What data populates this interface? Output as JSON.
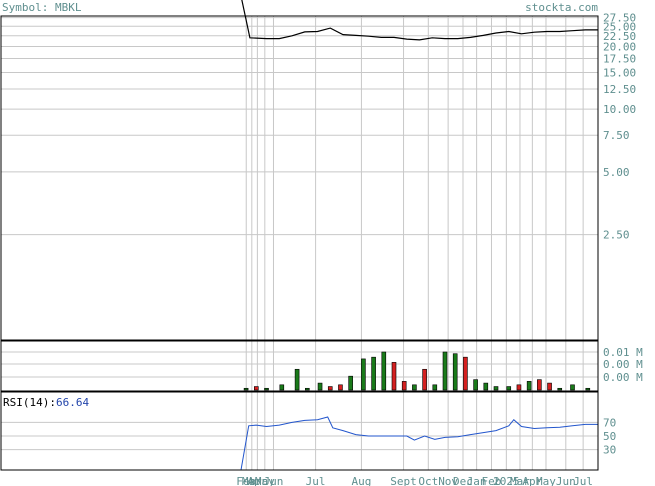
{
  "header": {
    "symbol_label": "Symbol: MBKL",
    "brand": "stockta.com"
  },
  "colors": {
    "background": "#ffffff",
    "frame": "#000000",
    "grid": "#c8c8c8",
    "axis_text": "#5f8f8f",
    "price_line": "#000000",
    "vol_up": "#1a7a1a",
    "vol_down": "#d42020",
    "rsi_line": "#2255cc",
    "rsi_value": "#2244aa"
  },
  "chart_data": [
    {
      "type": "line",
      "name": "price",
      "y_ticks": [
        "2.50",
        "5.00",
        "7.50",
        "10.00",
        "12.50",
        "15.00",
        "17.50",
        "20.00",
        "22.50",
        "25.00",
        "27.50"
      ],
      "ylim": [
        0,
        28
      ],
      "scale": "log",
      "x": [
        0.0,
        0.35,
        1.0,
        1.5,
        2.0,
        2.5,
        3.0,
        3.5,
        4.0,
        4.5,
        5.0,
        5.5,
        6.0,
        6.5,
        7.0,
        7.5,
        8.0,
        8.5,
        9.0,
        9.5,
        10.0,
        10.5,
        11.0,
        11.5,
        12.0,
        12.5,
        13.0,
        13.5,
        14.0
      ],
      "values": [
        600,
        22.0,
        21.8,
        21.8,
        22.5,
        23.5,
        23.6,
        24.5,
        22.8,
        22.6,
        22.4,
        22.1,
        22.1,
        21.7,
        21.5,
        22.0,
        21.8,
        21.8,
        22.1,
        22.6,
        23.2,
        23.6,
        23.0,
        23.4,
        23.6,
        23.6,
        23.8,
        24.0,
        24.0
      ]
    },
    {
      "type": "bar",
      "name": "volume",
      "y_ticks": [
        "0.01 M",
        "0.00 M",
        "0.00 M"
      ],
      "up_color": "#1a7a1a",
      "down_color": "#d42020",
      "x": [
        0.2,
        0.6,
        1.0,
        1.6,
        2.2,
        2.6,
        3.1,
        3.5,
        3.9,
        4.3,
        4.8,
        5.2,
        5.6,
        6.0,
        6.4,
        6.8,
        7.2,
        7.6,
        8.0,
        8.4,
        8.8,
        9.2,
        9.6,
        10.0,
        10.5,
        10.9,
        11.3,
        11.7,
        12.1,
        12.5,
        13.0,
        13.6
      ],
      "values": [
        0.001,
        0.002,
        0.001,
        0.003,
        0.012,
        0.001,
        0.004,
        0.002,
        0.003,
        0.008,
        0.018,
        0.019,
        0.022,
        0.016,
        0.005,
        0.003,
        0.012,
        0.003,
        0.022,
        0.021,
        0.019,
        0.006,
        0.004,
        0.002,
        0.002,
        0.003,
        0.005,
        0.006,
        0.004,
        0.001,
        0.003,
        0.001
      ],
      "direction": [
        "up",
        "down",
        "up",
        "up",
        "up",
        "up",
        "up",
        "down",
        "down",
        "up",
        "up",
        "up",
        "up",
        "down",
        "down",
        "up",
        "down",
        "up",
        "up",
        "up",
        "down",
        "up",
        "up",
        "up",
        "up",
        "down",
        "up",
        "down",
        "down",
        "up",
        "up",
        "up"
      ]
    },
    {
      "type": "line",
      "name": "rsi",
      "indicator_label": "RSI(14):",
      "current_value": "66.64",
      "y_ticks": [
        "70",
        "50",
        "30"
      ],
      "ylim": [
        0,
        100
      ],
      "x": [
        0.0,
        0.3,
        0.6,
        1.0,
        1.5,
        2.0,
        2.5,
        3.0,
        3.4,
        3.6,
        4.0,
        4.5,
        5.0,
        5.5,
        6.0,
        6.5,
        6.8,
        7.2,
        7.6,
        8.0,
        8.5,
        9.0,
        9.5,
        10.0,
        10.5,
        10.7,
        11.0,
        11.5,
        12.0,
        12.5,
        13.0,
        13.5,
        14.0
      ],
      "values": [
        0,
        65,
        66,
        64,
        66,
        70,
        73,
        74,
        78,
        62,
        58,
        52,
        50,
        50,
        50,
        50,
        44,
        50,
        45,
        48,
        49,
        52,
        55,
        58,
        65,
        74,
        64,
        61,
        62,
        63,
        65,
        67,
        67
      ],
      "x_ticks": [
        "Feb",
        "Mar",
        "Apr",
        "May",
        "Jun",
        "Jul",
        "Aug",
        "Sept",
        "Oct",
        "Nov",
        "Dec",
        "Jan",
        "Feb",
        "2025",
        "Mar",
        "Apr",
        "May",
        "Jun",
        "Jul"
      ],
      "x_tick_pos": [
        0.1,
        0.55,
        1.0,
        1.6,
        2.3,
        5.7,
        9.4,
        12.8,
        14.8,
        16.4,
        17.6,
        18.7,
        19.9,
        21.1,
        22.2,
        23.2,
        24.3,
        25.9,
        27.3
      ]
    }
  ]
}
